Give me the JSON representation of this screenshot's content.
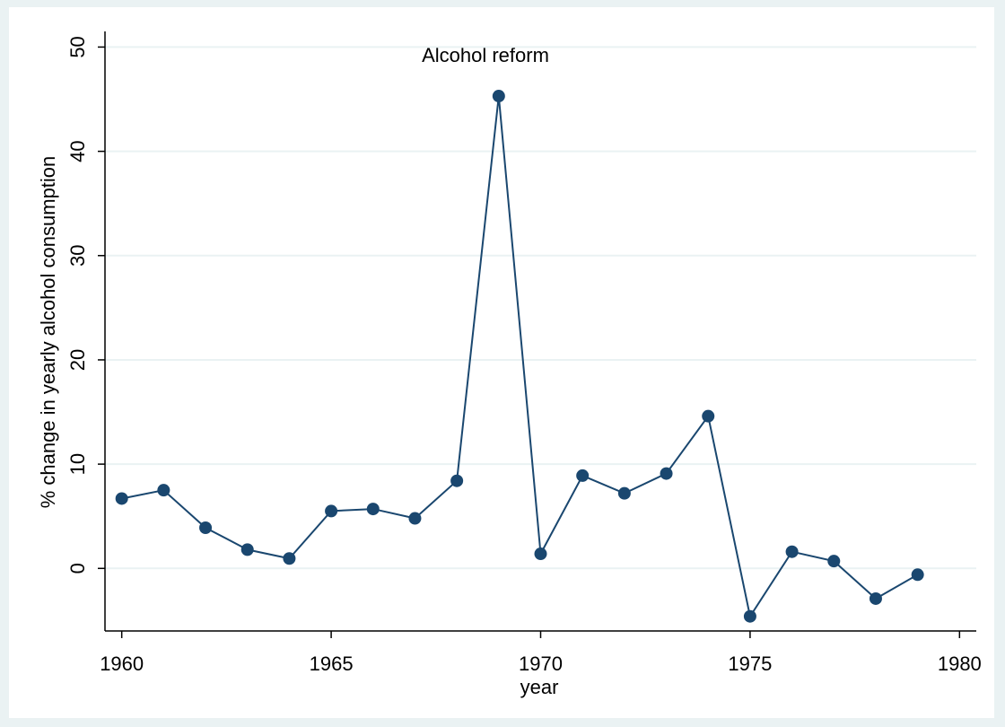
{
  "chart_data": {
    "type": "line",
    "annotation": "Alcohol reform",
    "x_label": "year",
    "y_label": "% change in yearly alcohol consumption",
    "x": [
      1960,
      1961,
      1962,
      1963,
      1964,
      1965,
      1966,
      1967,
      1968,
      1969,
      1970,
      1971,
      1972,
      1973,
      1974,
      1975,
      1976,
      1977,
      1978,
      1979
    ],
    "series": [
      {
        "name": "% change in yearly alcohol consumption",
        "color": "#1a476f",
        "values": [
          6.7,
          7.5,
          3.9,
          1.8,
          0.95,
          5.5,
          5.7,
          4.8,
          8.4,
          45.3,
          1.4,
          8.9,
          7.2,
          9.1,
          14.6,
          -4.6,
          1.6,
          0.7,
          -2.9,
          -0.6
        ]
      }
    ],
    "xlim": [
      1959.6,
      1980.4
    ],
    "xticks": [
      1960,
      1965,
      1970,
      1975,
      1980
    ],
    "ylim": [
      -6,
      51.5
    ],
    "yticks": [
      0,
      10,
      20,
      30,
      40,
      50
    ],
    "grid": true,
    "markers": true
  }
}
